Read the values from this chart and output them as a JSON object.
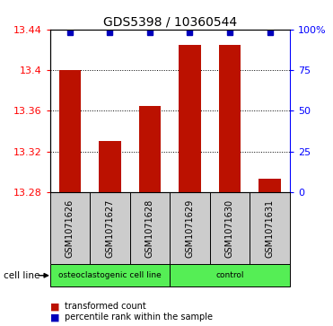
{
  "title": "GDS5398 / 10360544",
  "samples": [
    "GSM1071626",
    "GSM1071627",
    "GSM1071628",
    "GSM1071629",
    "GSM1071630",
    "GSM1071631"
  ],
  "bar_values": [
    13.4,
    13.33,
    13.365,
    13.425,
    13.425,
    13.293
  ],
  "percentile_values": [
    13.437,
    13.437,
    13.437,
    13.437,
    13.437,
    13.437
  ],
  "y_min": 13.28,
  "y_max": 13.44,
  "y_ticks_left": [
    13.28,
    13.32,
    13.36,
    13.4,
    13.44
  ],
  "y_ticks_right_pct": [
    0,
    25,
    50,
    75,
    100
  ],
  "bar_color": "#bb1100",
  "percentile_color": "#0000bb",
  "group_labels": [
    "osteoclastogenic cell line",
    "control"
  ],
  "group_ranges": [
    [
      0,
      3
    ],
    [
      3,
      6
    ]
  ],
  "group_color": "#55ee55",
  "cell_bg_color": "#cccccc",
  "legend_items": [
    "transformed count",
    "percentile rank within the sample"
  ],
  "cell_line_label": "cell line",
  "title_fontsize": 10,
  "tick_fontsize": 8,
  "sample_fontsize": 7
}
